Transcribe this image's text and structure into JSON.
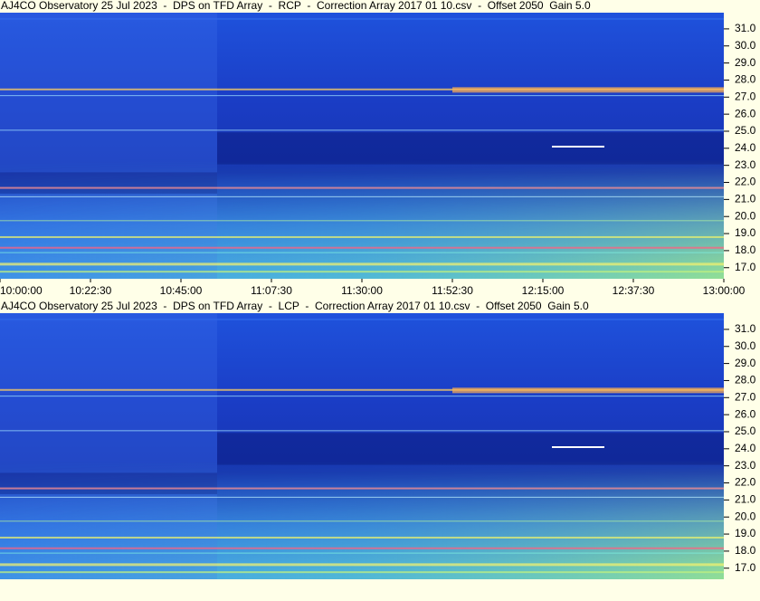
{
  "chart_data": [
    {
      "type": "spectrogram",
      "title": "AJ4CO Observatory 25 Jul 2023  -  DPS on TFD Array  -  RCP  -  Correction Array 2017 01 10.csv  -  Offset 2050  Gain 5.0",
      "ylim": [
        16.35,
        31.95
      ],
      "yticks": [
        {
          "value": 17,
          "label": "17.0"
        },
        {
          "value": 18,
          "label": "18.0"
        },
        {
          "value": 19,
          "label": "19.0"
        },
        {
          "value": 20,
          "label": "20.0"
        },
        {
          "value": 21,
          "label": "21.0"
        },
        {
          "value": 22,
          "label": "22.0"
        },
        {
          "value": 23,
          "label": "23.0"
        },
        {
          "value": 24,
          "label": "24.0"
        },
        {
          "value": 25,
          "label": "25.0"
        },
        {
          "value": 26,
          "label": "26.0"
        },
        {
          "value": 27,
          "label": "27.0"
        },
        {
          "value": 28,
          "label": "28.0"
        },
        {
          "value": 29,
          "label": "29.0"
        },
        {
          "value": 30,
          "label": "30.0"
        },
        {
          "value": 31,
          "label": "31.0"
        }
      ],
      "xlim": [
        "10:00:00",
        "13:00:00"
      ],
      "xticks": [
        "10:00:00",
        "10:22:30",
        "10:45:00",
        "11:07:30",
        "11:30:00",
        "11:52:30",
        "12:15:00",
        "12:37:30",
        "13:00:00"
      ]
    },
    {
      "type": "spectrogram",
      "title": "AJ4CO Observatory 25 Jul 2023  -  DPS on TFD Array  -  LCP  -  Correction Array 2017 01 10.csv  -  Offset 2050  Gain 5.0",
      "ylim": [
        16.35,
        31.95
      ],
      "yticks": [
        {
          "value": 17,
          "label": "17.0"
        },
        {
          "value": 18,
          "label": "18.0"
        },
        {
          "value": 19,
          "label": "19.0"
        },
        {
          "value": 20,
          "label": "20.0"
        },
        {
          "value": 21,
          "label": "21.0"
        },
        {
          "value": 22,
          "label": "22.0"
        },
        {
          "value": 23,
          "label": "23.0"
        },
        {
          "value": 24,
          "label": "24.0"
        },
        {
          "value": 25,
          "label": "25.0"
        },
        {
          "value": 26,
          "label": "26.0"
        },
        {
          "value": 27,
          "label": "27.0"
        },
        {
          "value": 28,
          "label": "28.0"
        },
        {
          "value": 29,
          "label": "29.0"
        },
        {
          "value": 30,
          "label": "30.0"
        },
        {
          "value": 31,
          "label": "31.0"
        }
      ],
      "xlim": [
        "10:00:00",
        "13:00:00"
      ]
    }
  ]
}
